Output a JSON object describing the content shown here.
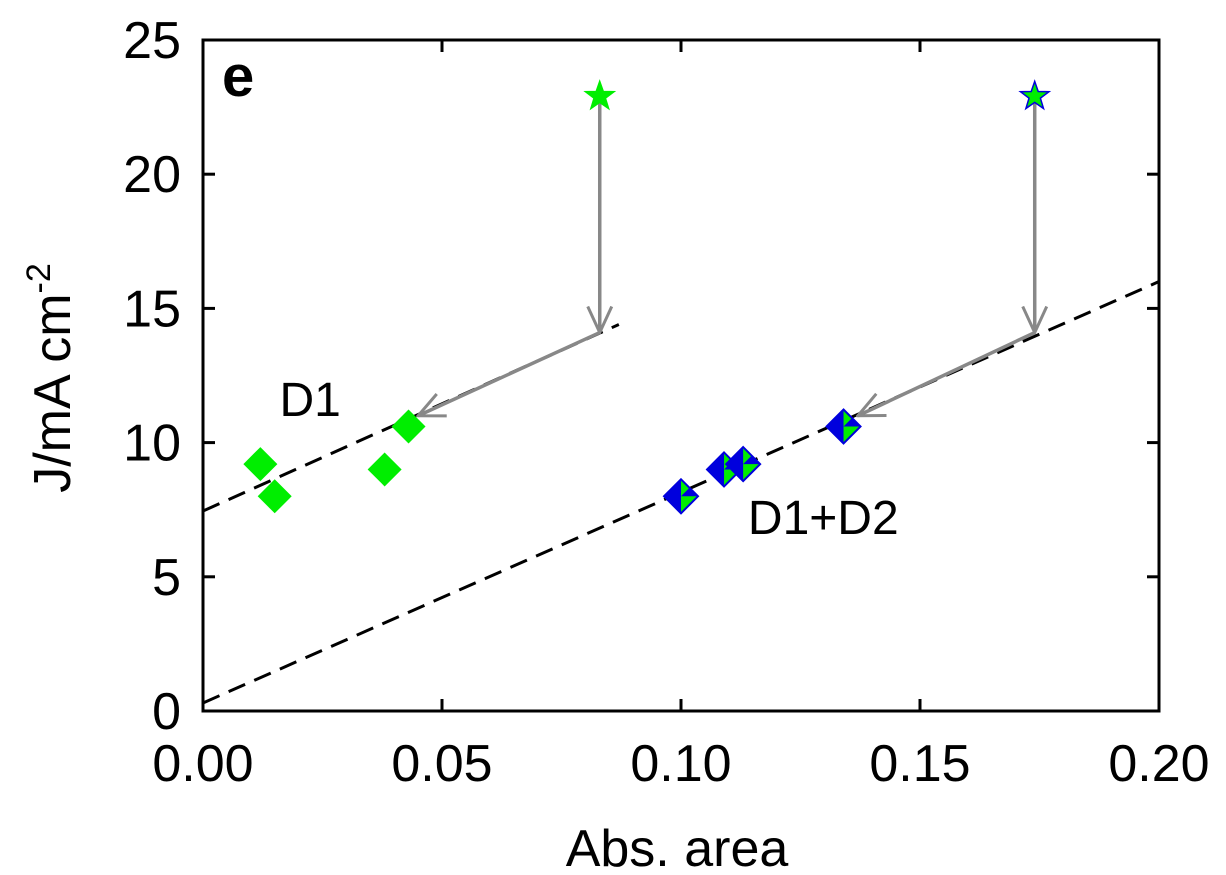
{
  "chart_data": {
    "type": "scatter",
    "panel_label": "e",
    "xlabel": "Abs. area",
    "ylabel": "J/mA cm",
    "ylabel_superscript": "-2",
    "xlim": [
      0.0,
      0.2
    ],
    "ylim": [
      0,
      25
    ],
    "x_ticks": [
      0.0,
      0.05,
      0.1,
      0.15,
      0.2
    ],
    "x_tick_labels": [
      "0.00",
      "0.05",
      "0.10",
      "0.15",
      "0.20"
    ],
    "y_ticks": [
      0,
      5,
      10,
      15,
      20,
      25
    ],
    "y_tick_labels": [
      "0",
      "5",
      "10",
      "15",
      "20",
      "25"
    ],
    "grid": false,
    "series": [
      {
        "name": "D1",
        "marker": "diamond",
        "color": "#00ee00",
        "points": [
          {
            "x": 0.012,
            "y": 9.2
          },
          {
            "x": 0.015,
            "y": 8.0
          },
          {
            "x": 0.038,
            "y": 9.0
          },
          {
            "x": 0.043,
            "y": 10.6
          }
        ]
      },
      {
        "name": "D1+D2",
        "marker": "diamond-split",
        "color": "#00ee00",
        "edge_color": "#0000dd",
        "points": [
          {
            "x": 0.1,
            "y": 8.0
          },
          {
            "x": 0.109,
            "y": 9.0
          },
          {
            "x": 0.113,
            "y": 9.2
          },
          {
            "x": 0.134,
            "y": 10.6
          }
        ]
      }
    ],
    "stars": [
      {
        "x": 0.083,
        "y": 22.9,
        "color": "#00ee00",
        "edge": "#00ee00"
      },
      {
        "x": 0.174,
        "y": 22.9,
        "color": "#00ee00",
        "edge": "#0000dd"
      }
    ],
    "fit_lines": [
      {
        "x0": 0.0,
        "y0": 7.45,
        "x1": 0.087,
        "y1": 14.4
      },
      {
        "x0": 0.0,
        "y0": 0.3,
        "x1": 0.2,
        "y1": 16.0
      }
    ],
    "arrows": [
      {
        "from": [
          0.083,
          22.9
        ],
        "to": [
          0.083,
          14.1
        ]
      },
      {
        "from": [
          0.083,
          14.1
        ],
        "to": [
          0.045,
          11.0
        ]
      },
      {
        "from": [
          0.174,
          22.9
        ],
        "to": [
          0.174,
          14.1
        ]
      },
      {
        "from": [
          0.174,
          14.1
        ],
        "to": [
          0.137,
          11.0
        ]
      }
    ],
    "annotations": [
      {
        "text": "D1",
        "x": 0.016,
        "y": 11.0
      },
      {
        "text": "D1+D2",
        "x": 0.114,
        "y": 6.6
      }
    ],
    "colors": {
      "arrow": "#888888",
      "fit_line": "#000000",
      "axis": "#000000"
    }
  }
}
